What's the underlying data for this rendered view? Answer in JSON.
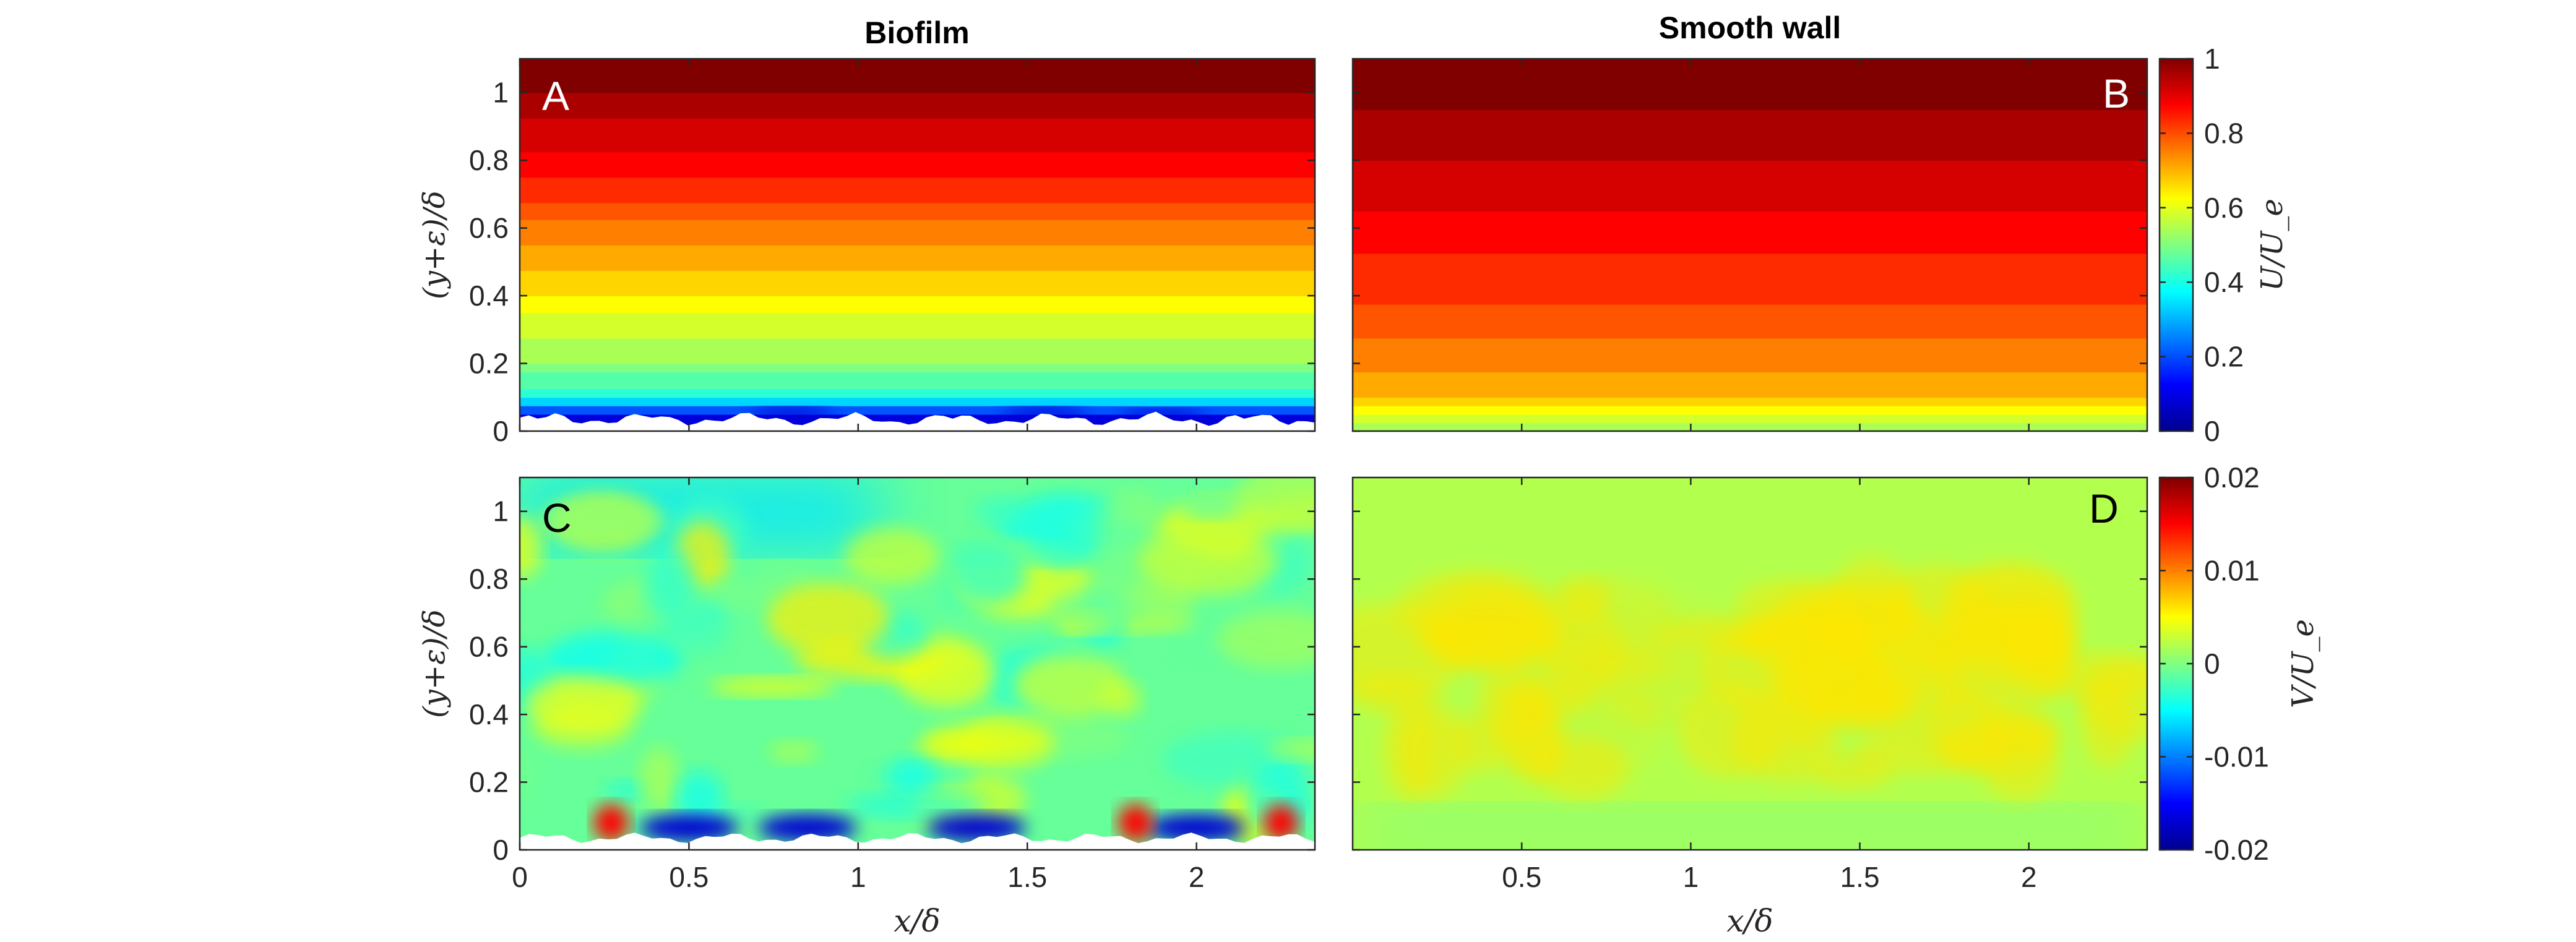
{
  "panel_titles": {
    "left": "Biofilm",
    "right": "Smooth wall"
  },
  "colors": {
    "jet": [
      "#00008f",
      "#0000ff",
      "#0080ff",
      "#00ffff",
      "#80ff80",
      "#ffff00",
      "#ff8000",
      "#ff0000",
      "#800000"
    ],
    "biofilm_surface": "#ffffff",
    "axis": "#262626"
  },
  "chart_data": [
    {
      "panel": "A",
      "type": "heatmap",
      "title": "Biofilm",
      "field": "U/U_e",
      "xlim": [
        0,
        2.35
      ],
      "ylim": [
        0,
        1.1
      ],
      "xticks": [
        0,
        0.5,
        1,
        1.5,
        2
      ],
      "yticks": [
        0,
        0.2,
        0.4,
        0.6,
        0.8,
        1
      ],
      "xtick_labels_visible": false,
      "xlabel": "",
      "ylabel": "(y+ε)/δ",
      "surface": "biofilm (white rough band near y ≈ 0.03–0.06)",
      "profile": [
        [
          0.04,
          0.08
        ],
        [
          0.1,
          0.4
        ],
        [
          0.2,
          0.52
        ],
        [
          0.4,
          0.64
        ],
        [
          0.6,
          0.76
        ],
        [
          0.8,
          0.88
        ],
        [
          1.0,
          0.98
        ],
        [
          1.1,
          1.0
        ]
      ]
    },
    {
      "panel": "B",
      "type": "heatmap",
      "title": "Smooth wall",
      "field": "U/U_e",
      "xlim": [
        0,
        2.35
      ],
      "ylim": [
        0,
        1.1
      ],
      "xticks": [
        0.5,
        1,
        1.5,
        2
      ],
      "yticks": [
        0,
        0.2,
        0.4,
        0.6,
        0.8,
        1
      ],
      "xtick_labels_visible": false,
      "ytick_labels_visible": false,
      "profile": [
        [
          0.0,
          0.5
        ],
        [
          0.05,
          0.62
        ],
        [
          0.1,
          0.68
        ],
        [
          0.2,
          0.74
        ],
        [
          0.4,
          0.82
        ],
        [
          0.6,
          0.88
        ],
        [
          0.8,
          0.94
        ],
        [
          1.0,
          0.99
        ],
        [
          1.1,
          1.0
        ]
      ]
    },
    {
      "panel": "C",
      "type": "heatmap",
      "field": "V/U_e",
      "xlim": [
        0,
        2.35
      ],
      "ylim": [
        0,
        1.1
      ],
      "xticks": [
        0,
        0.5,
        1,
        1.5,
        2
      ],
      "yticks": [
        0,
        0.2,
        0.4,
        0.6,
        0.8,
        1
      ],
      "xlabel": "x/δ",
      "ylabel": "(y+ε)/δ",
      "features": {
        "background_value": -0.001,
        "upper_band_value": -0.006,
        "near_wall_positive_x": [
          0.27,
          1.82,
          2.25
        ],
        "near_wall_negative_x": [
          0.5,
          0.85,
          1.35,
          2.0
        ]
      }
    },
    {
      "panel": "D",
      "type": "heatmap",
      "field": "V/U_e",
      "xlim": [
        0,
        2.35
      ],
      "ylim": [
        0,
        1.1
      ],
      "xticks": [
        0.5,
        1,
        1.5,
        2
      ],
      "yticks": [
        0,
        0.2,
        0.4,
        0.6,
        0.8,
        1
      ],
      "xlabel": "x/δ",
      "ytick_labels_visible": false,
      "features": {
        "background_value": 0.002,
        "mid_band_value": 0.006,
        "near_wall_value": 0.0
      }
    }
  ],
  "colorbars": [
    {
      "for": "top row",
      "label": "U/U_e",
      "range": [
        0,
        1
      ],
      "ticks": [
        0,
        0.2,
        0.4,
        0.6,
        0.8,
        1
      ],
      "tick_labels": [
        "0",
        "0.2",
        "0.4",
        "0.6",
        "0.8",
        "1"
      ]
    },
    {
      "for": "bottom row",
      "label": "V/U_e",
      "range": [
        -0.02,
        0.02
      ],
      "ticks": [
        -0.02,
        -0.01,
        0,
        0.01,
        0.02
      ],
      "tick_labels": [
        "-0.02",
        "-0.01",
        "0",
        "0.01",
        "0.02"
      ]
    }
  ]
}
